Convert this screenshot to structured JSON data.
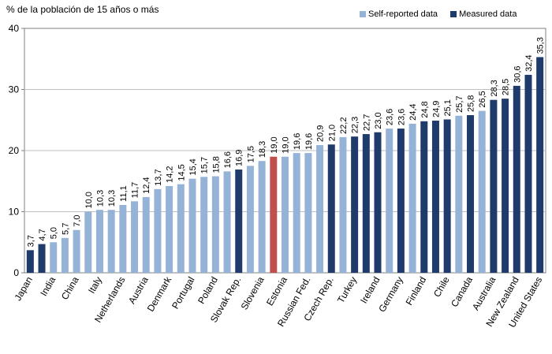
{
  "chart_data": {
    "type": "bar",
    "ylabel": "% de la población  de 15 años o más",
    "ylim": [
      0,
      40
    ],
    "yticks": [
      0,
      10,
      20,
      30,
      40
    ],
    "grid": true,
    "legend_position": "top-right",
    "colors": {
      "self": "#95B3D7",
      "measured": "#1F3B6B",
      "highlight": "#C0504D"
    },
    "legend": [
      {
        "label": "Self-reported data",
        "kind": "self"
      },
      {
        "label": "Measured data",
        "kind": "measured"
      }
    ],
    "categories": [
      "Japan",
      "",
      "India",
      "",
      "China",
      "",
      "Italy",
      "",
      "Netherlands",
      "",
      "Austria",
      "",
      "Denmark",
      "",
      "Portugal",
      "",
      "Poland",
      "",
      "Slovak Rep.",
      "",
      "Slovenia",
      "",
      "Estonia",
      "",
      "Russian Fed.",
      "",
      "Czech Rep.",
      "",
      "Turkey",
      "",
      "Ireland",
      "",
      "Germany",
      "",
      "Finland",
      "",
      "Chile",
      "",
      "Canada",
      "",
      "Australia",
      "",
      "New Zealand",
      "",
      "United States"
    ],
    "values": [
      3.7,
      4.7,
      5.0,
      5.7,
      7.0,
      10.0,
      10.3,
      10.3,
      11.1,
      11.7,
      12.4,
      13.7,
      14.2,
      14.5,
      15.4,
      15.7,
      15.8,
      16.6,
      16.9,
      17.5,
      18.3,
      19.0,
      19.0,
      19.6,
      19.6,
      20.9,
      21.0,
      22.2,
      22.3,
      22.7,
      23.0,
      23.6,
      23.6,
      24.4,
      24.8,
      24.9,
      25.1,
      25.7,
      25.8,
      26.5,
      28.3,
      28.5,
      30.6,
      32.4,
      35.3
    ],
    "value_labels": [
      "3,7",
      "4,7",
      "5,0",
      "5,7",
      "7,0",
      "10,0",
      "10,3",
      "10,3",
      "11,1",
      "11,7",
      "12,4",
      "13,7",
      "14,2",
      "14,5",
      "15,4",
      "15,7",
      "15,8",
      "16,6",
      "16,9",
      "17,5",
      "18,3",
      "19,0",
      "19,0",
      "19,6",
      "19,6",
      "20,9",
      "21,0",
      "22,2",
      "22,3",
      "22,7",
      "23,0",
      "23,6",
      "23,6",
      "24,4",
      "24,8",
      "24,9",
      "25,1",
      "25,7",
      "25,8",
      "26,5",
      "28,3",
      "28,5",
      "30,6",
      "32,4",
      "35,3"
    ],
    "kinds": [
      "measured",
      "measured",
      "self",
      "self",
      "self",
      "self",
      "self",
      "self",
      "self",
      "self",
      "self",
      "self",
      "self",
      "self",
      "self",
      "self",
      "self",
      "self",
      "measured",
      "self",
      "self",
      "highlight",
      "self",
      "self",
      "self",
      "self",
      "measured",
      "self",
      "measured",
      "measured",
      "measured",
      "self",
      "measured",
      "self",
      "measured",
      "measured",
      "measured",
      "self",
      "measured",
      "self",
      "measured",
      "measured",
      "measured",
      "measured",
      "measured"
    ]
  }
}
